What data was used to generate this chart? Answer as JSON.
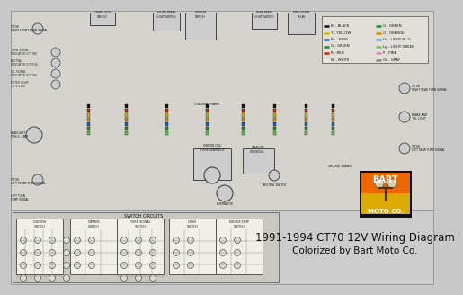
{
  "title": "1991-1994 CT70 12V Wiring Diagram",
  "subtitle": "Colorized by Bart Moto Co.",
  "bg_color": "#c8c8c8",
  "diagram_bg": "#d4d4cc",
  "wire_black": "#111111",
  "wire_red": "#cc2200",
  "wire_yellow": "#ccbb00",
  "wire_blue": "#1166cc",
  "wire_green": "#228833",
  "wire_lgreen": "#66cc44",
  "wire_orange": "#dd8800",
  "wire_brown": "#996633",
  "wire_teal": "#22aaaa",
  "logo_bg": "#111111",
  "logo_orange": "#ee6600",
  "logo_yellow": "#ddaa00",
  "legend_rows": [
    [
      "Bl",
      "#111111",
      "BLACK",
      "G",
      "#228833",
      "GREEN"
    ],
    [
      "Y",
      "#ccbb00",
      "YELLOW",
      "O",
      "#dd8800",
      "ORANGE"
    ],
    [
      "Bu",
      "#1166cc",
      "BLUE",
      "Lb",
      "#44aacc",
      "LIGHT BL-G"
    ],
    [
      "G",
      "#228833",
      "GREEN",
      "Lg",
      "#66cc44",
      "LIGHT GREEN"
    ],
    [
      "R",
      "#cc2200",
      "RED",
      "P",
      "#dd88aa",
      "PINK"
    ],
    [
      "W",
      "#eeeeee",
      "WHITE",
      "Gr",
      "#888888",
      "GRAY"
    ]
  ]
}
